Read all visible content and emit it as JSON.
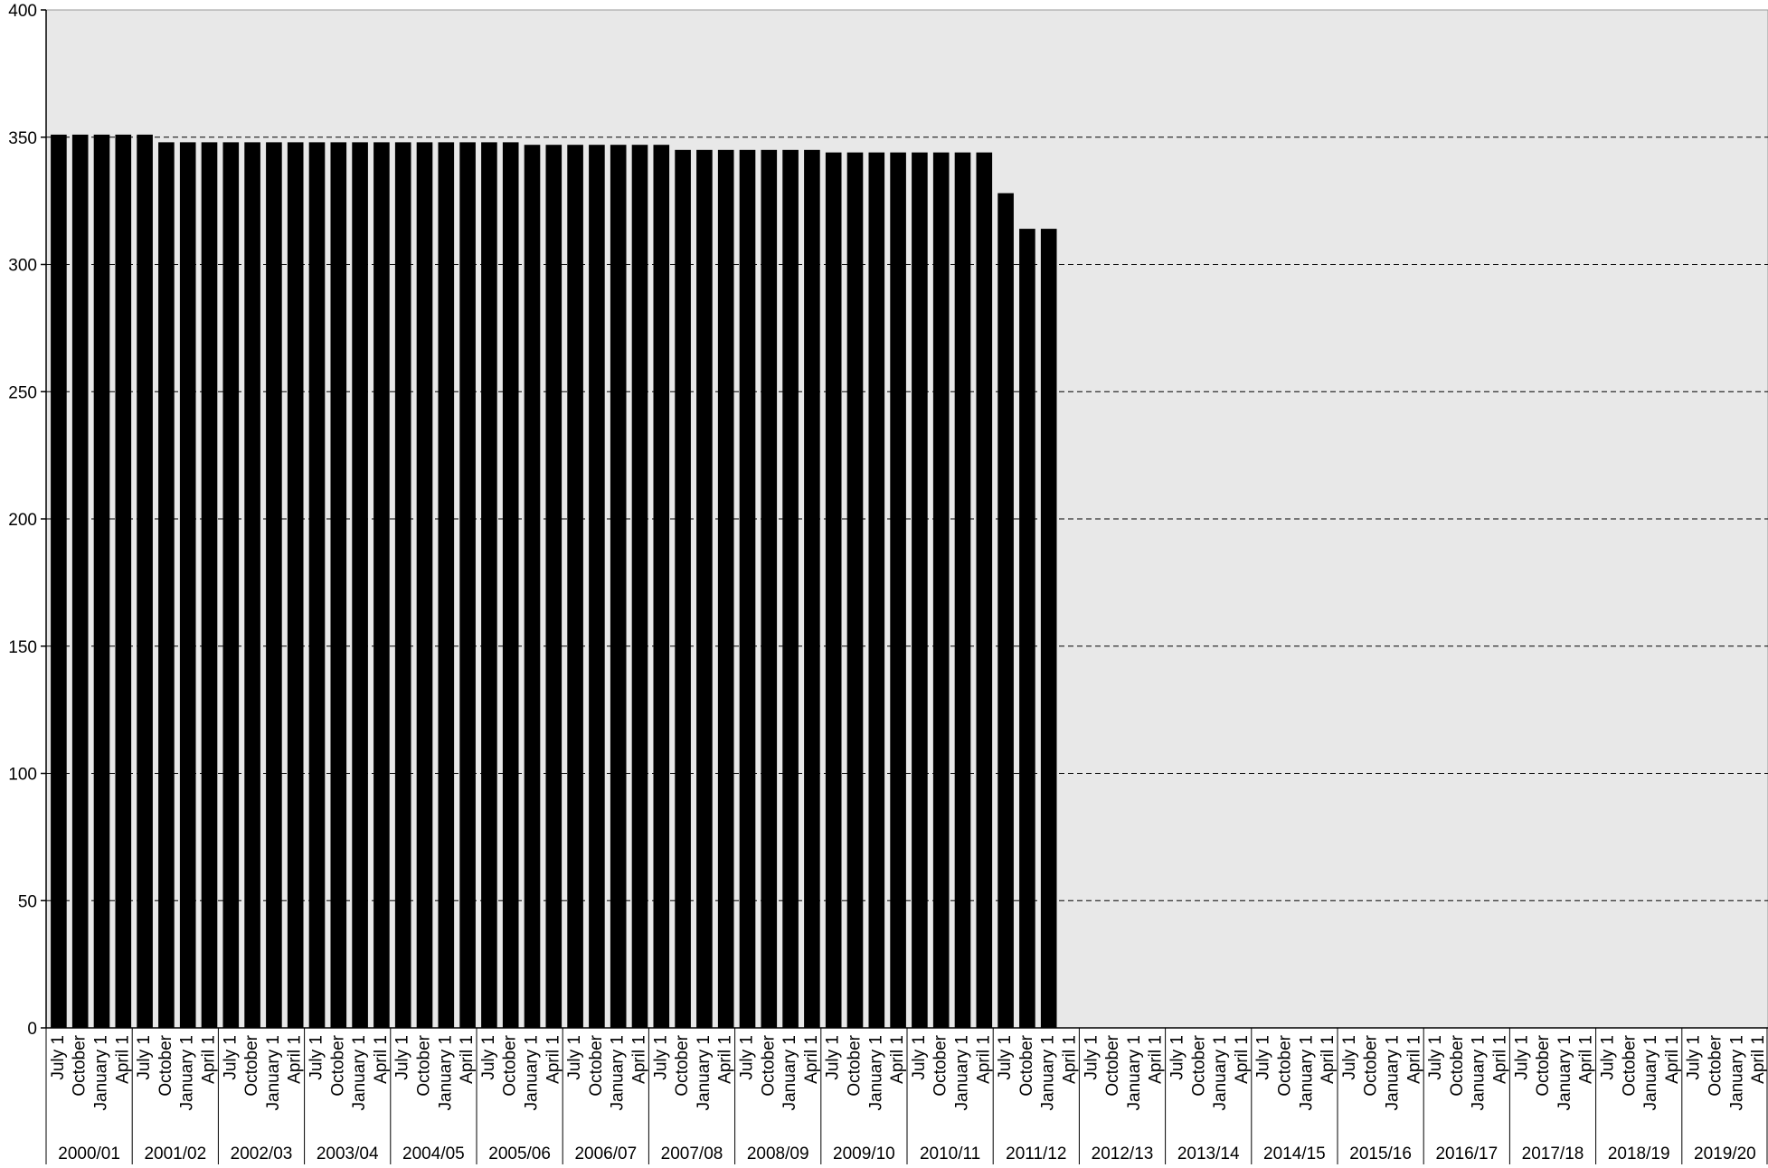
{
  "chart_data": {
    "type": "bar",
    "title": "",
    "xlabel": "",
    "ylabel": "",
    "ylim": [
      0,
      400
    ],
    "yticks": [
      0,
      50,
      100,
      150,
      200,
      250,
      300,
      350,
      400
    ],
    "grid": "horizontal-dashed",
    "colors": {
      "bar": "#000000",
      "plot_bg": "#e8e8e8",
      "grid": "#000000"
    },
    "quarters": [
      "July 1",
      "October",
      "January 1",
      "April 1"
    ],
    "years": [
      "2000/01",
      "2001/02",
      "2002/03",
      "2003/04",
      "2004/05",
      "2005/06",
      "2006/07",
      "2007/08",
      "2008/09",
      "2009/10",
      "2010/11",
      "2011/12",
      "2012/13",
      "2013/14",
      "2014/15",
      "2015/16",
      "2016/17",
      "2017/18",
      "2018/19",
      "2019/20"
    ],
    "values": [
      351,
      351,
      351,
      351,
      351,
      348,
      348,
      348,
      348,
      348,
      348,
      348,
      348,
      348,
      348,
      348,
      348,
      348,
      348,
      348,
      348,
      348,
      347,
      347,
      347,
      347,
      347,
      347,
      347,
      345,
      345,
      345,
      345,
      345,
      345,
      345,
      344,
      344,
      344,
      344,
      344,
      344,
      344,
      344,
      328,
      314,
      314,
      null,
      null,
      null,
      null,
      null,
      null,
      null,
      null,
      null,
      null,
      null,
      null,
      null,
      null,
      null,
      null,
      null,
      null,
      null,
      null,
      null,
      null,
      null,
      null,
      null,
      null,
      null,
      null,
      null,
      null,
      null,
      null,
      null
    ]
  }
}
